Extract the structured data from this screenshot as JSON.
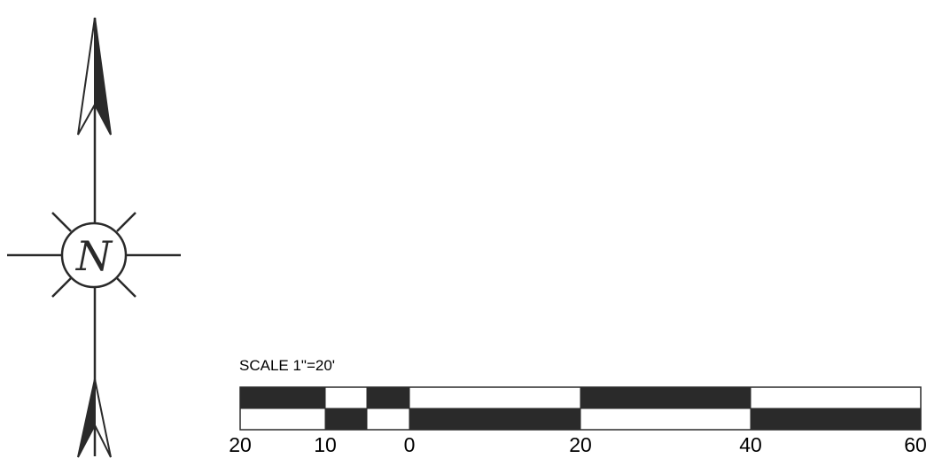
{
  "north_arrow": {
    "symbol": "N",
    "icon": "north-arrow-icon"
  },
  "scale": {
    "title": "SCALE 1\"=20'",
    "tick_labels": [
      "20",
      "10",
      "0",
      "20",
      "40",
      "60"
    ]
  },
  "colors": {
    "ink": "#2a2a2a",
    "background": "#ffffff"
  }
}
